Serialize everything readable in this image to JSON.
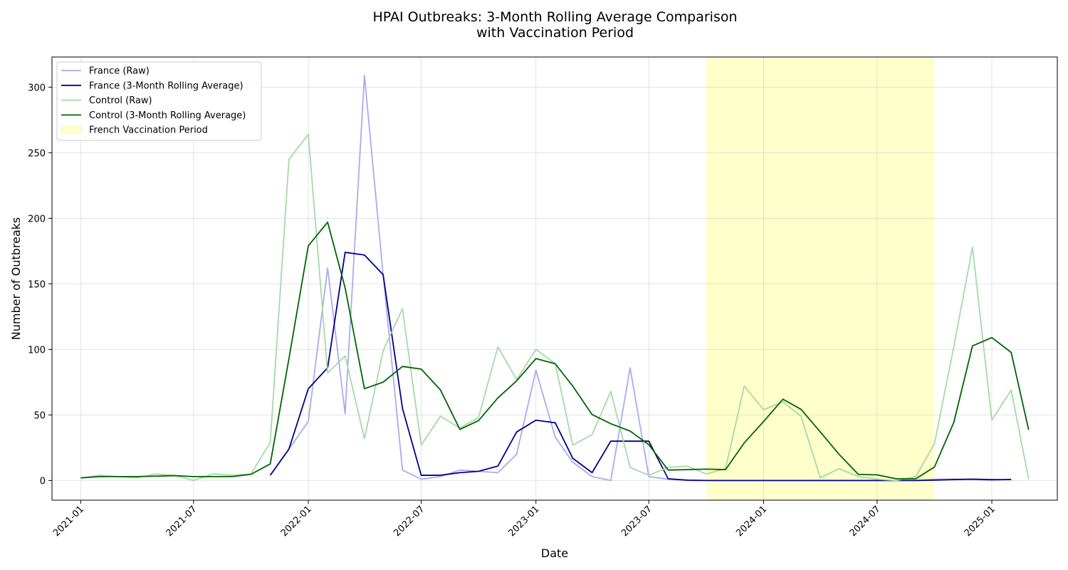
{
  "chart_data": {
    "type": "line",
    "title": [
      "HPAI Outbreaks: 3-Month Rolling Average Comparison",
      "with Vaccination Period"
    ],
    "xlabel": "Date",
    "ylabel": "Number of Outbreaks",
    "xlim": [
      "2020-11-16",
      "2025-04-16"
    ],
    "ylim": [
      -15,
      323
    ],
    "grid": true,
    "legend_position": "upper left",
    "x_ticks": [
      "2021-01",
      "2021-07",
      "2022-01",
      "2022-07",
      "2023-01",
      "2023-07",
      "2024-01",
      "2024-07",
      "2025-01"
    ],
    "y_ticks": [
      0,
      50,
      100,
      150,
      200,
      250,
      300
    ],
    "shaded_region": {
      "label": "French Vaccination Period",
      "start": "2023-10-01",
      "end": "2024-10-01",
      "color": "#ffffcc"
    },
    "series": [
      {
        "name": "France (Raw)",
        "color": "#aaaaf2",
        "dates": [
          "2021-11",
          "2021-12",
          "2022-01",
          "2022-02",
          "2022-03",
          "2022-04",
          "2022-05",
          "2022-06",
          "2022-07",
          "2022-08",
          "2022-09",
          "2022-10",
          "2022-11",
          "2022-12",
          "2023-01",
          "2023-02",
          "2023-03",
          "2023-04",
          "2023-05",
          "2023-06",
          "2023-07",
          "2023-08",
          "2023-09",
          "2023-10",
          "2023-11",
          "2023-12",
          "2024-01",
          "2024-02",
          "2024-03",
          "2024-04",
          "2024-05",
          "2024-06",
          "2024-07",
          "2024-08",
          "2024-09",
          "2024-10",
          "2024-11",
          "2024-12",
          "2025-01",
          "2025-02"
        ],
        "values": [
          4,
          24,
          45,
          162,
          51,
          309,
          157,
          8,
          1,
          3,
          8,
          7,
          6,
          20,
          84,
          33,
          14,
          3,
          0,
          86,
          3,
          1,
          0,
          0,
          0,
          0,
          0,
          0,
          0,
          0,
          0,
          0,
          0,
          0,
          0,
          1,
          1,
          1,
          0,
          1
        ]
      },
      {
        "name": "France (3-Month Rolling Average)",
        "color": "#00008b",
        "dates": [
          "2021-11",
          "2021-12",
          "2022-01",
          "2022-02",
          "2022-03",
          "2022-04",
          "2022-05",
          "2022-06",
          "2022-07",
          "2022-08",
          "2022-09",
          "2022-10",
          "2022-11",
          "2022-12",
          "2023-01",
          "2023-02",
          "2023-03",
          "2023-04",
          "2023-05",
          "2023-06",
          "2023-07",
          "2023-08",
          "2023-09",
          "2023-10",
          "2023-11",
          "2023-12",
          "2024-01",
          "2024-02",
          "2024-03",
          "2024-04",
          "2024-05",
          "2024-06",
          "2024-07",
          "2024-08",
          "2024-09",
          "2024-10",
          "2024-11",
          "2024-12",
          "2025-01",
          "2025-02"
        ],
        "values": [
          4,
          24,
          70,
          86,
          174,
          172,
          157,
          55,
          4,
          4,
          6,
          7,
          11,
          37,
          46,
          44,
          17,
          6,
          30,
          30,
          30,
          1.3,
          0.3,
          0,
          0,
          0,
          0,
          0,
          0,
          0,
          0,
          0,
          0,
          0,
          0,
          0.3,
          0.7,
          1,
          0.7,
          0.7
        ]
      },
      {
        "name": "Control (Raw)",
        "color": "#a6d9a6",
        "dates": [
          "2021-01",
          "2021-02",
          "2021-03",
          "2021-04",
          "2021-05",
          "2021-06",
          "2021-07",
          "2021-08",
          "2021-09",
          "2021-10",
          "2021-11",
          "2021-12",
          "2022-01",
          "2022-02",
          "2022-03",
          "2022-04",
          "2022-05",
          "2022-06",
          "2022-07",
          "2022-08",
          "2022-09",
          "2022-10",
          "2022-11",
          "2022-12",
          "2023-01",
          "2023-02",
          "2023-03",
          "2023-04",
          "2023-05",
          "2023-06",
          "2023-07",
          "2023-08",
          "2023-09",
          "2023-10",
          "2023-11",
          "2023-12",
          "2024-01",
          "2024-02",
          "2024-03",
          "2024-04",
          "2024-05",
          "2024-06",
          "2024-07",
          "2024-08",
          "2024-09",
          "2024-10",
          "2024-11",
          "2024-12",
          "2025-01",
          "2025-02",
          "2025-03"
        ],
        "values": [
          2,
          4,
          3,
          2,
          5,
          4,
          0,
          5,
          4,
          5,
          29,
          245,
          264,
          82,
          95,
          32,
          99,
          131,
          27,
          49,
          40,
          48,
          102,
          77,
          100,
          89,
          27,
          35,
          68,
          10,
          4,
          10,
          11,
          5,
          9,
          72,
          54,
          60,
          49,
          2,
          9,
          3,
          1,
          0,
          3,
          28,
          102,
          178,
          46,
          69,
          1
        ]
      },
      {
        "name": "Control (3-Month Rolling Average)",
        "color": "#006400",
        "dates": [
          "2021-01",
          "2021-02",
          "2021-03",
          "2021-04",
          "2021-05",
          "2021-06",
          "2021-07",
          "2021-08",
          "2021-09",
          "2021-10",
          "2021-11",
          "2021-12",
          "2022-01",
          "2022-02",
          "2022-03",
          "2022-04",
          "2022-05",
          "2022-06",
          "2022-07",
          "2022-08",
          "2022-09",
          "2022-10",
          "2022-11",
          "2022-12",
          "2023-01",
          "2023-02",
          "2023-03",
          "2023-04",
          "2023-05",
          "2023-06",
          "2023-07",
          "2023-08",
          "2023-09",
          "2023-10",
          "2023-11",
          "2023-12",
          "2024-01",
          "2024-02",
          "2024-03",
          "2024-04",
          "2024-05",
          "2024-06",
          "2024-07",
          "2024-08",
          "2024-09",
          "2024-10",
          "2024-11",
          "2024-12",
          "2025-01",
          "2025-02",
          "2025-03"
        ],
        "values": [
          2,
          3,
          3,
          3,
          3.3,
          3.7,
          3,
          3,
          3,
          4.7,
          12.7,
          93,
          179,
          197,
          147,
          70,
          75,
          87,
          85,
          69,
          39,
          45.7,
          63,
          76,
          93,
          89,
          72,
          50.3,
          43.3,
          37.7,
          27.3,
          8,
          8.3,
          8.7,
          8.3,
          28.7,
          45,
          62,
          54.3,
          37,
          20,
          4.7,
          4.3,
          1.3,
          1.3,
          10.3,
          44.3,
          102.7,
          109,
          97.7,
          38.7
        ]
      }
    ]
  }
}
